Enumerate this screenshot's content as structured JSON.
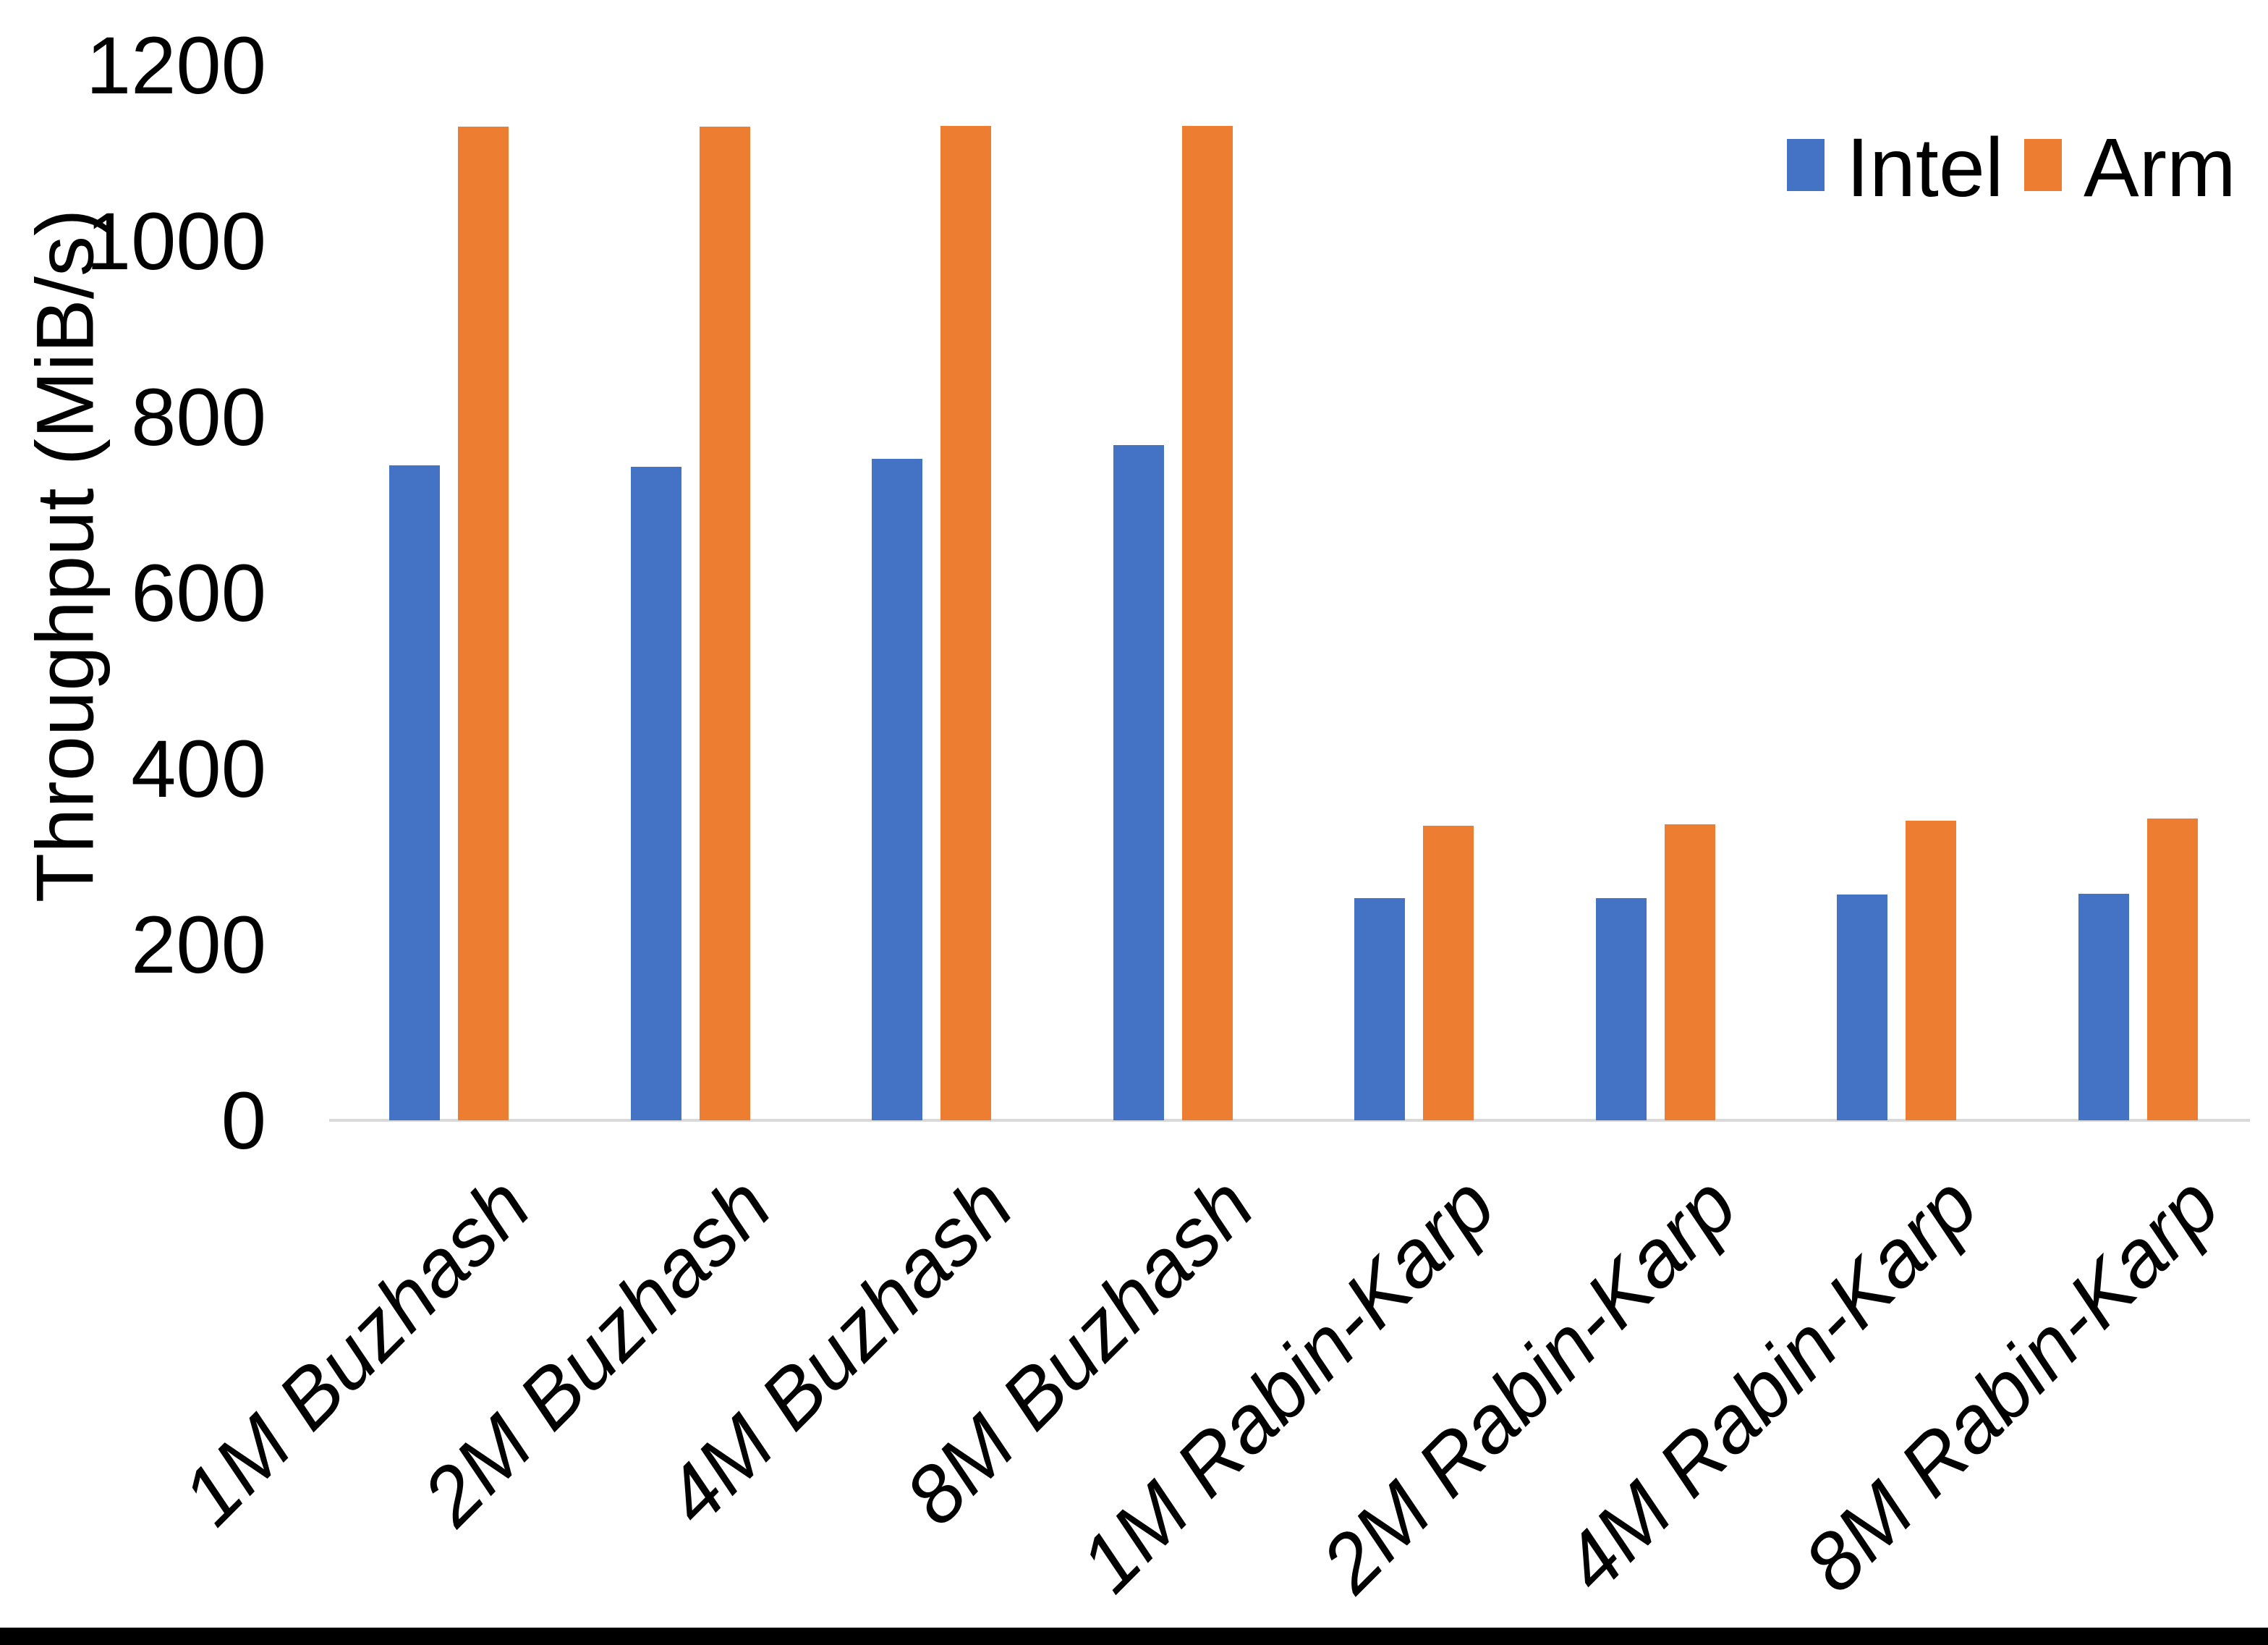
{
  "chart_data": {
    "type": "bar",
    "title": "",
    "xlabel": "",
    "ylabel": "Throughput (MiB/s)",
    "ylim": [
      0,
      1200
    ],
    "yticks": [
      0,
      200,
      400,
      600,
      800,
      1000,
      1200
    ],
    "grid": false,
    "legend_position": "top-right",
    "categories": [
      "1M Buzhash",
      "2M Buzhash",
      "4M Buzhash",
      "8M Buzhash",
      "1M Rabin-Karp",
      "2M Rabin-Karp",
      "4M Rabin-Karp",
      "8M Rabin-Karp"
    ],
    "series": [
      {
        "name": "Intel",
        "color": "#4472C4",
        "values": [
          745,
          743,
          752,
          768,
          253,
          253,
          257,
          258
        ]
      },
      {
        "name": "Arm",
        "color": "#ED7D31",
        "values": [
          1130,
          1130,
          1131,
          1131,
          335,
          337,
          341,
          343
        ]
      }
    ]
  },
  "colors": {
    "axis_line": "#D9D9D9",
    "text": "#000000",
    "background": "#FFFFFF",
    "bottom_border": "#000000"
  }
}
